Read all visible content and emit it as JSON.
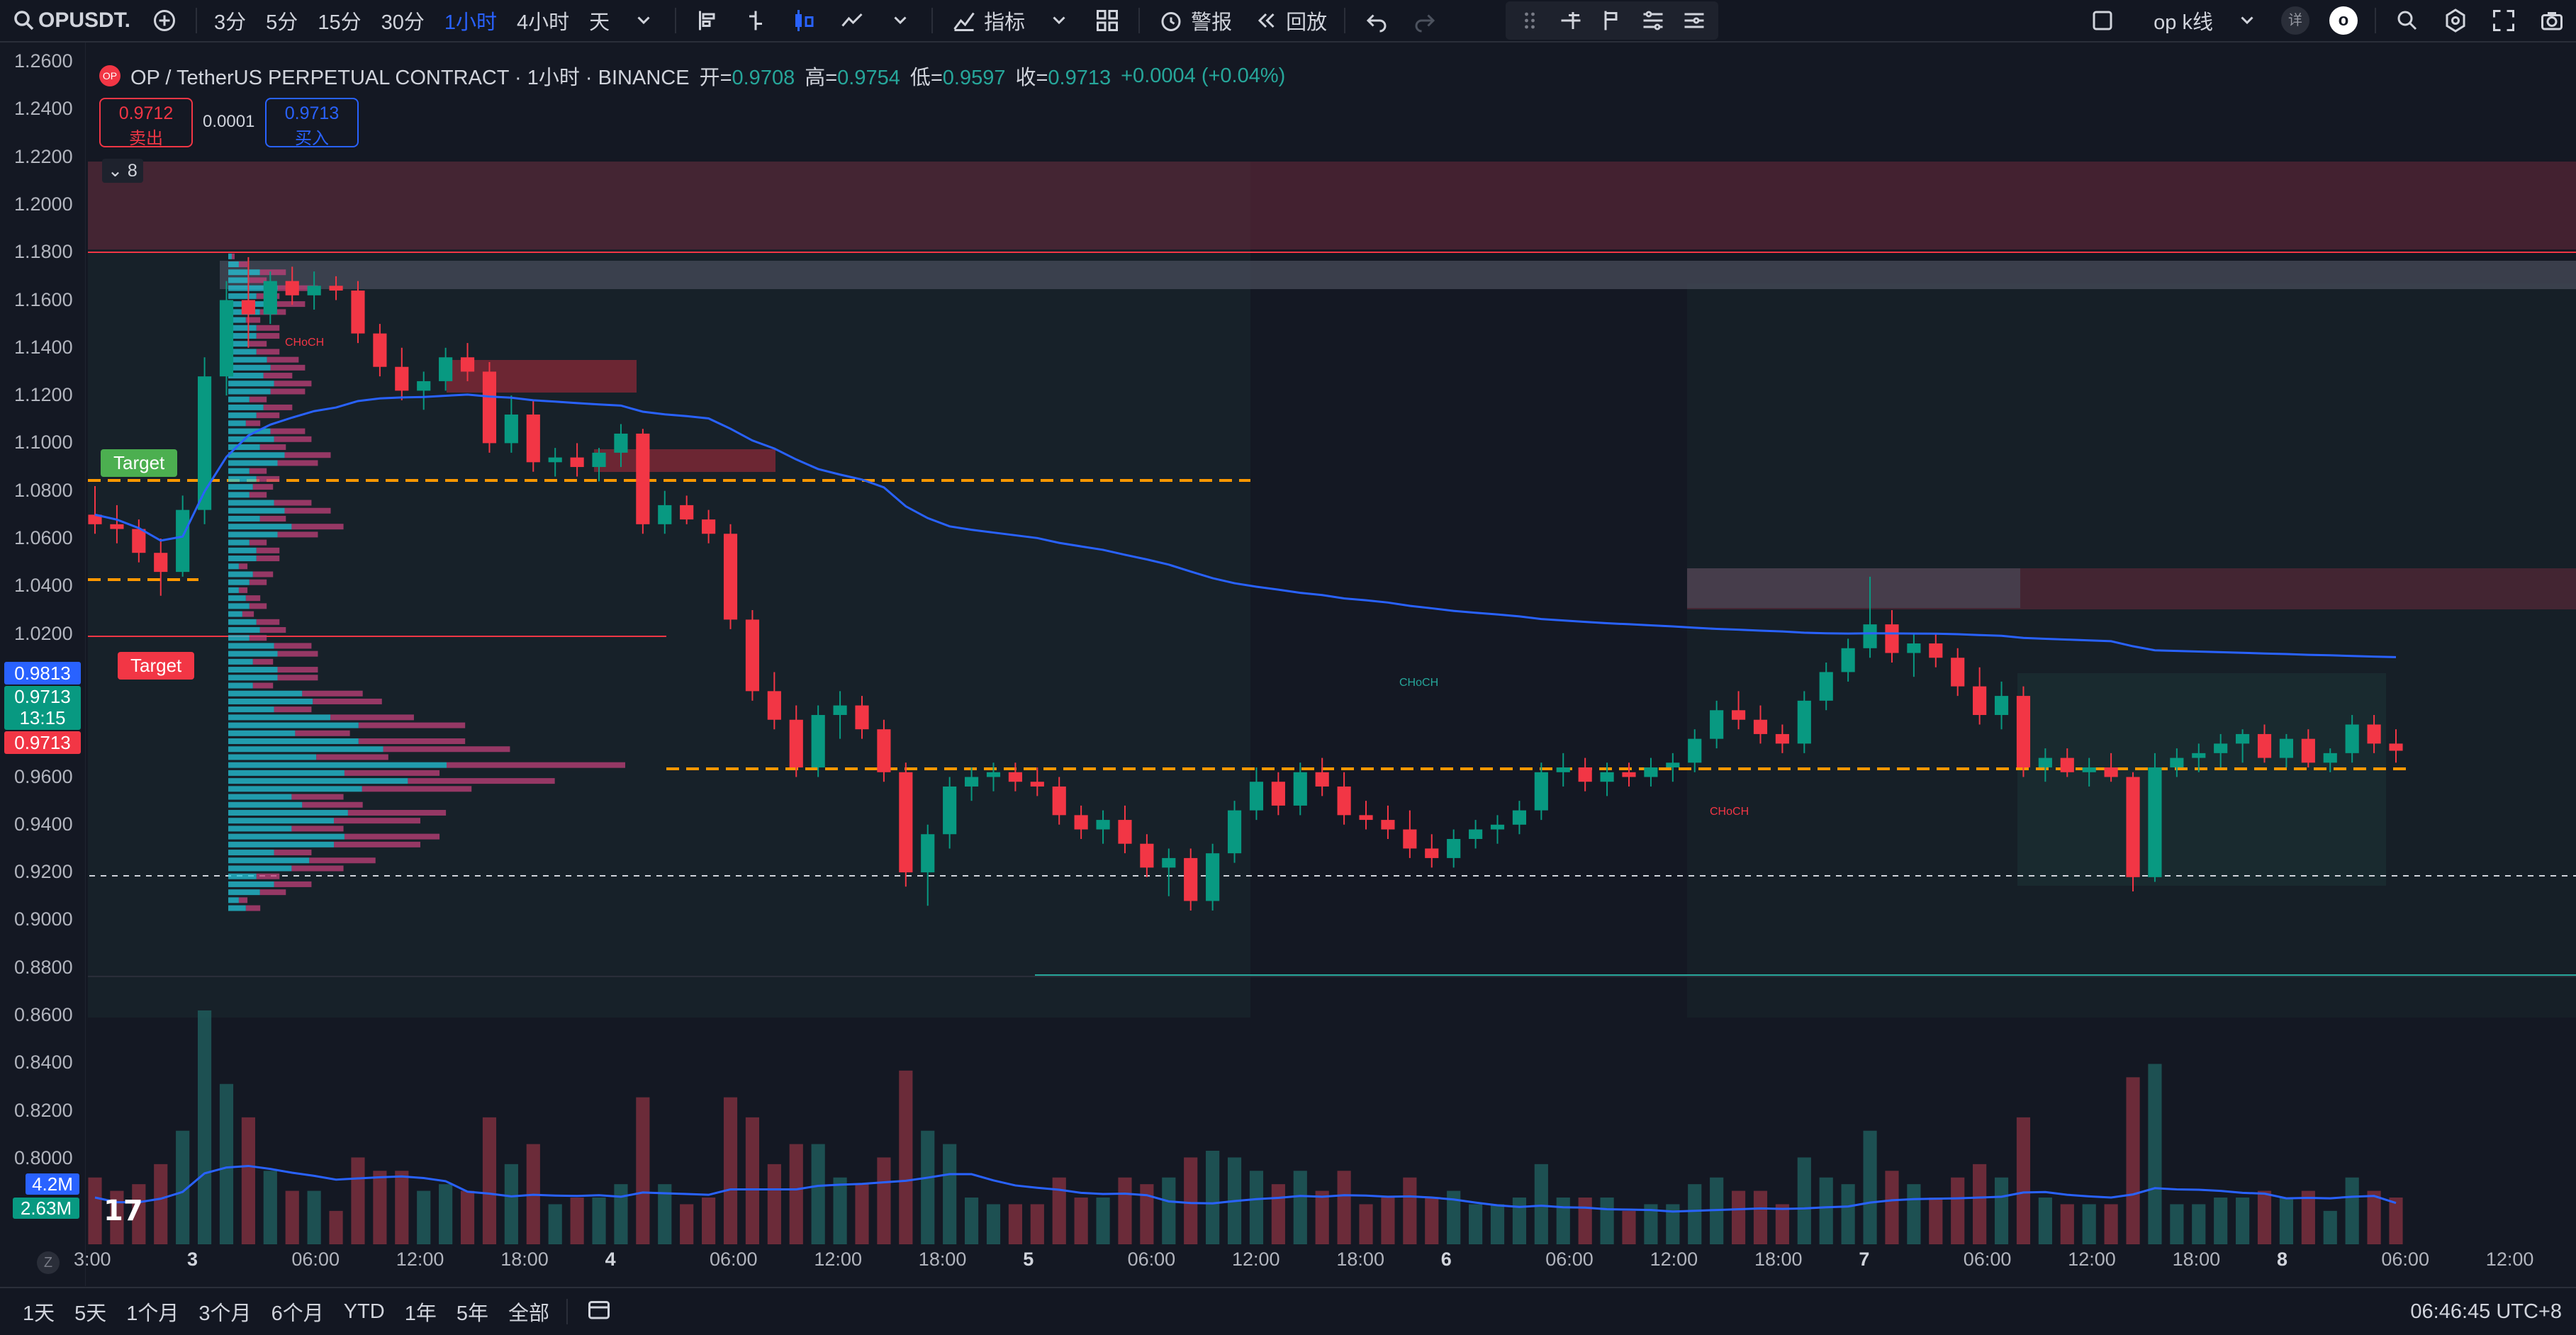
{
  "topbar": {
    "symbol": "OPUSDT.",
    "intervals": [
      "3分",
      "5分",
      "15分",
      "30分",
      "1小时",
      "4小时",
      "天"
    ],
    "active_interval": "1小时",
    "indicators_label": "指标",
    "alert_label": "警报",
    "replay_label": "回放",
    "layout_name": "op k线",
    "badge_detail": "详",
    "badge_o": "o"
  },
  "legend": {
    "title": "OP / TetherUS PERPETUAL CONTRACT · 1小时 · BINANCE",
    "open_label": "开=",
    "open": "0.9708",
    "high_label": "高=",
    "high": "0.9754",
    "low_label": "低=",
    "low": "0.9597",
    "close_label": "收=",
    "close": "0.9713",
    "change": "+0.0004 (+0.04%)"
  },
  "trade": {
    "sell_price": "0.9712",
    "sell_label": "卖出",
    "spread": "0.0001",
    "buy_price": "0.9713",
    "buy_label": "买入"
  },
  "indicator_count": "8",
  "price_axis": [
    "1.2600",
    "1.2400",
    "1.2200",
    "1.2000",
    "1.1800",
    "1.1600",
    "1.1400",
    "1.1200",
    "1.1000",
    "1.0800",
    "1.0600",
    "1.0400",
    "1.0200",
    "0.9600",
    "0.9400",
    "0.9200",
    "0.9000",
    "0.8800",
    "0.8600",
    "0.8400",
    "0.8200",
    "0.8000"
  ],
  "axis_tags": {
    "blue": "0.9813",
    "green_price": "0.9713",
    "green_time": "13:15",
    "red": "0.9713",
    "vol1": "4.2M",
    "vol2": "2.63M"
  },
  "annotations": {
    "target_green": "Target",
    "target_red": "Target",
    "choch": "CHoCH"
  },
  "time_axis": [
    "3:00",
    "3",
    "06:00",
    "12:00",
    "18:00",
    "4",
    "06:00",
    "12:00",
    "18:00",
    "5",
    "06:00",
    "12:00",
    "18:00",
    "6",
    "06:00",
    "12:00",
    "18:00",
    "7",
    "06:00",
    "12:00",
    "18:00",
    "8",
    "06:00",
    "12:00"
  ],
  "bottombar": {
    "ranges": [
      "1天",
      "5天",
      "1个月",
      "3个月",
      "6个月",
      "YTD",
      "1年",
      "5年",
      "全部"
    ],
    "clock": "06:46:45 UTC+8"
  },
  "z_label": "Z",
  "tv_logo": "17",
  "chart_data": {
    "type": "candlestick",
    "title": "OP / TetherUS PERPETUAL CONTRACT · 1小时 · BINANCE",
    "ylim": [
      0.86,
      1.26
    ],
    "candles": [
      [
        1.07,
        1.082,
        1.062,
        1.066
      ],
      [
        1.066,
        1.074,
        1.058,
        1.064
      ],
      [
        1.064,
        1.068,
        1.05,
        1.054
      ],
      [
        1.054,
        1.06,
        1.036,
        1.046
      ],
      [
        1.046,
        1.078,
        1.044,
        1.072
      ],
      [
        1.072,
        1.136,
        1.066,
        1.128
      ],
      [
        1.128,
        1.168,
        1.12,
        1.16
      ],
      [
        1.16,
        1.178,
        1.14,
        1.154
      ],
      [
        1.154,
        1.172,
        1.15,
        1.168
      ],
      [
        1.168,
        1.174,
        1.158,
        1.162
      ],
      [
        1.162,
        1.172,
        1.156,
        1.166
      ],
      [
        1.166,
        1.17,
        1.16,
        1.164
      ],
      [
        1.164,
        1.168,
        1.142,
        1.146
      ],
      [
        1.146,
        1.15,
        1.128,
        1.132
      ],
      [
        1.132,
        1.14,
        1.118,
        1.122
      ],
      [
        1.122,
        1.13,
        1.114,
        1.126
      ],
      [
        1.126,
        1.14,
        1.122,
        1.136
      ],
      [
        1.136,
        1.142,
        1.126,
        1.13
      ],
      [
        1.13,
        1.134,
        1.096,
        1.1
      ],
      [
        1.1,
        1.12,
        1.096,
        1.112
      ],
      [
        1.112,
        1.118,
        1.088,
        1.092
      ],
      [
        1.092,
        1.098,
        1.086,
        1.094
      ],
      [
        1.094,
        1.1,
        1.086,
        1.09
      ],
      [
        1.09,
        1.098,
        1.084,
        1.096
      ],
      [
        1.096,
        1.108,
        1.09,
        1.104
      ],
      [
        1.104,
        1.106,
        1.062,
        1.066
      ],
      [
        1.066,
        1.08,
        1.062,
        1.074
      ],
      [
        1.074,
        1.078,
        1.066,
        1.068
      ],
      [
        1.068,
        1.072,
        1.058,
        1.062
      ],
      [
        1.062,
        1.066,
        1.022,
        1.026
      ],
      [
        1.026,
        1.03,
        0.992,
        0.996
      ],
      [
        0.996,
        1.004,
        0.98,
        0.984
      ],
      [
        0.984,
        0.99,
        0.96,
        0.964
      ],
      [
        0.964,
        0.99,
        0.96,
        0.986
      ],
      [
        0.986,
        0.996,
        0.976,
        0.99
      ],
      [
        0.99,
        0.994,
        0.976,
        0.98
      ],
      [
        0.98,
        0.984,
        0.958,
        0.962
      ],
      [
        0.962,
        0.966,
        0.914,
        0.92
      ],
      [
        0.92,
        0.94,
        0.906,
        0.936
      ],
      [
        0.936,
        0.96,
        0.93,
        0.956
      ],
      [
        0.956,
        0.964,
        0.95,
        0.96
      ],
      [
        0.96,
        0.966,
        0.954,
        0.962
      ],
      [
        0.962,
        0.966,
        0.954,
        0.958
      ],
      [
        0.958,
        0.964,
        0.952,
        0.956
      ],
      [
        0.956,
        0.96,
        0.94,
        0.944
      ],
      [
        0.944,
        0.948,
        0.934,
        0.938
      ],
      [
        0.938,
        0.946,
        0.932,
        0.942
      ],
      [
        0.942,
        0.948,
        0.928,
        0.932
      ],
      [
        0.932,
        0.936,
        0.918,
        0.922
      ],
      [
        0.922,
        0.93,
        0.91,
        0.926
      ],
      [
        0.926,
        0.93,
        0.904,
        0.908
      ],
      [
        0.908,
        0.932,
        0.904,
        0.928
      ],
      [
        0.928,
        0.95,
        0.924,
        0.946
      ],
      [
        0.946,
        0.964,
        0.942,
        0.958
      ],
      [
        0.958,
        0.962,
        0.944,
        0.948
      ],
      [
        0.948,
        0.966,
        0.944,
        0.962
      ],
      [
        0.962,
        0.968,
        0.952,
        0.956
      ],
      [
        0.956,
        0.962,
        0.94,
        0.944
      ],
      [
        0.944,
        0.95,
        0.938,
        0.942
      ],
      [
        0.942,
        0.948,
        0.934,
        0.938
      ],
      [
        0.938,
        0.946,
        0.926,
        0.93
      ],
      [
        0.93,
        0.936,
        0.922,
        0.926
      ],
      [
        0.926,
        0.938,
        0.922,
        0.934
      ],
      [
        0.934,
        0.942,
        0.93,
        0.938
      ],
      [
        0.938,
        0.944,
        0.932,
        0.94
      ],
      [
        0.94,
        0.95,
        0.936,
        0.946
      ],
      [
        0.946,
        0.966,
        0.942,
        0.962
      ],
      [
        0.962,
        0.97,
        0.956,
        0.964
      ],
      [
        0.964,
        0.968,
        0.954,
        0.958
      ],
      [
        0.958,
        0.966,
        0.952,
        0.962
      ],
      [
        0.962,
        0.966,
        0.956,
        0.96
      ],
      [
        0.96,
        0.968,
        0.956,
        0.964
      ],
      [
        0.964,
        0.97,
        0.958,
        0.966
      ],
      [
        0.966,
        0.98,
        0.962,
        0.976
      ],
      [
        0.976,
        0.992,
        0.972,
        0.988
      ],
      [
        0.988,
        0.996,
        0.98,
        0.984
      ],
      [
        0.984,
        0.99,
        0.974,
        0.978
      ],
      [
        0.978,
        0.982,
        0.97,
        0.974
      ],
      [
        0.974,
        0.996,
        0.97,
        0.992
      ],
      [
        0.992,
        1.008,
        0.988,
        1.004
      ],
      [
        1.004,
        1.018,
        1.0,
        1.014
      ],
      [
        1.014,
        1.044,
        1.01,
        1.024
      ],
      [
        1.024,
        1.03,
        1.008,
        1.012
      ],
      [
        1.012,
        1.02,
        1.002,
        1.016
      ],
      [
        1.016,
        1.02,
        1.006,
        1.01
      ],
      [
        1.01,
        1.014,
        0.994,
        0.998
      ],
      [
        0.998,
        1.006,
        0.982,
        0.986
      ],
      [
        0.986,
        1.0,
        0.98,
        0.994
      ],
      [
        0.994,
        0.998,
        0.96,
        0.964
      ],
      [
        0.964,
        0.972,
        0.958,
        0.968
      ],
      [
        0.968,
        0.972,
        0.96,
        0.962
      ],
      [
        0.962,
        0.968,
        0.956,
        0.964
      ],
      [
        0.964,
        0.97,
        0.958,
        0.96
      ],
      [
        0.96,
        0.962,
        0.912,
        0.918
      ],
      [
        0.918,
        0.97,
        0.916,
        0.964
      ],
      [
        0.964,
        0.972,
        0.96,
        0.968
      ],
      [
        0.968,
        0.974,
        0.962,
        0.97
      ],
      [
        0.97,
        0.978,
        0.964,
        0.974
      ],
      [
        0.974,
        0.98,
        0.966,
        0.978
      ],
      [
        0.978,
        0.982,
        0.966,
        0.968
      ],
      [
        0.968,
        0.978,
        0.964,
        0.976
      ],
      [
        0.976,
        0.98,
        0.964,
        0.966
      ],
      [
        0.966,
        0.972,
        0.962,
        0.97
      ],
      [
        0.97,
        0.986,
        0.966,
        0.982
      ],
      [
        0.982,
        0.986,
        0.97,
        0.974
      ],
      [
        0.974,
        0.98,
        0.966,
        0.971
      ]
    ],
    "volume_axis_labels": [
      "4.2M",
      "2.63M"
    ]
  }
}
